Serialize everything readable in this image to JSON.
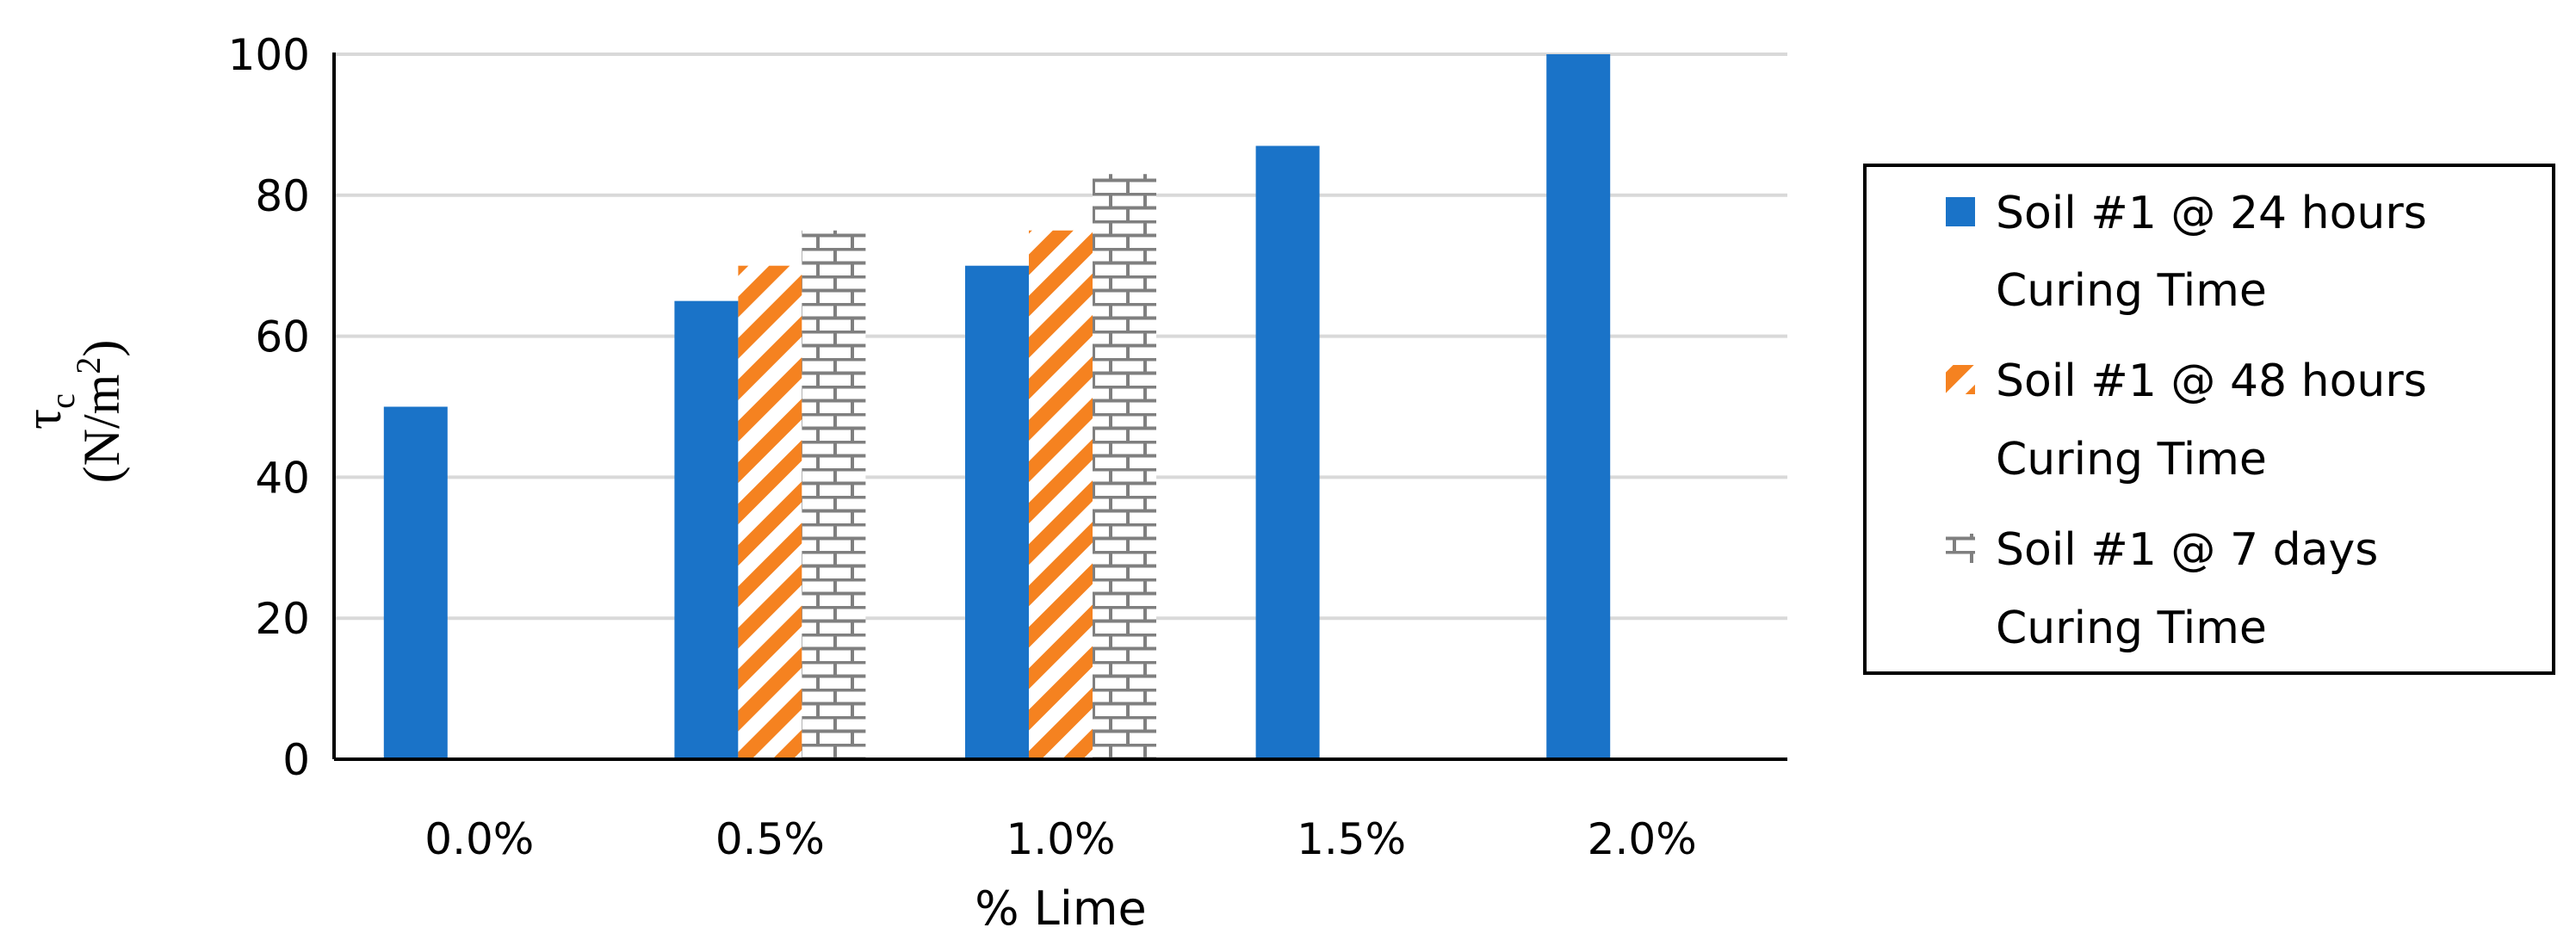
{
  "chart_data": {
    "type": "bar",
    "title": "",
    "xlabel": "% Lime",
    "ylabel_symbol": "τ",
    "ylabel_subscript": "c",
    "ylabel_unit_pre": "(N/m",
    "ylabel_unit_sup": "2",
    "ylabel_unit_post": ")",
    "ylim": [
      0,
      100
    ],
    "yticks": [
      "0",
      "20",
      "40",
      "60",
      "80",
      "100"
    ],
    "categories": [
      "0.0%",
      "0.5%",
      "1.0%",
      "1.5%",
      "2.0%"
    ],
    "series": [
      {
        "name_line1": "Soil #1 @ 24 hours",
        "name_line2": "Curing Time",
        "values": [
          50,
          65,
          70,
          87,
          100
        ],
        "color": "#1a73c8",
        "pattern": "solid"
      },
      {
        "name_line1": "Soil #1 @ 48 hours",
        "name_line2": "Curing Time",
        "values": [
          null,
          70,
          75,
          null,
          null
        ],
        "color": "#f58220",
        "pattern": "diagonal"
      },
      {
        "name_line1": "Soil #1 @ 7 days",
        "name_line2": "Curing Time",
        "values": [
          null,
          75,
          83,
          null,
          null
        ],
        "color": "#7f7f7f",
        "pattern": "brick"
      }
    ],
    "grid": true,
    "legend_position": "right"
  }
}
